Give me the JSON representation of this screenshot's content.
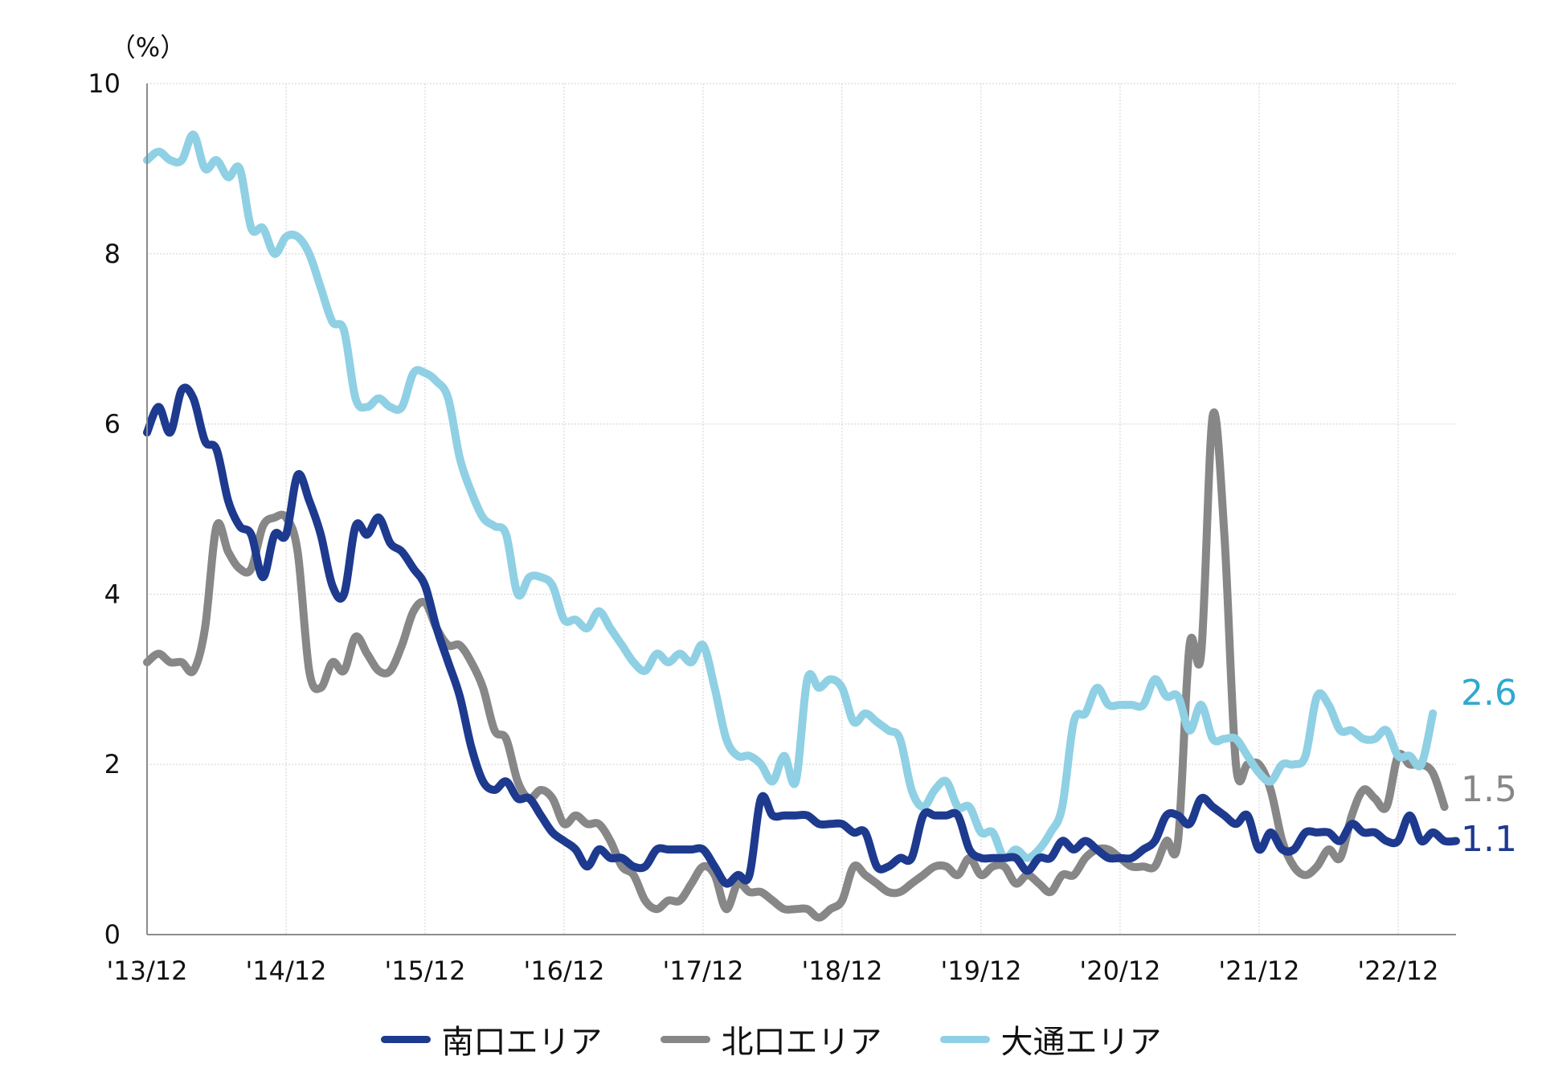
{
  "chart_data": {
    "type": "line",
    "unit_label": "（%）",
    "ylim": [
      0,
      10
    ],
    "yticks": [
      "0",
      "2",
      "4",
      "6",
      "8",
      "10"
    ],
    "x_range": [
      0,
      113
    ],
    "x_tick_labels": [
      "'13/12",
      "'14/12",
      "'15/12",
      "'16/12",
      "'17/12",
      "'18/12",
      "'19/12",
      "'20/12",
      "'21/12",
      "'22/12"
    ],
    "grid": "horizontal and vertical, light",
    "legend_position": "bottom-center",
    "series": [
      {
        "name": "南口エリア",
        "color": "#1d3a8f",
        "end_label": "1.1",
        "values": [
          5.9,
          6.2,
          5.9,
          6.4,
          6.3,
          5.8,
          5.7,
          5.1,
          4.8,
          4.7,
          4.2,
          4.7,
          4.7,
          5.4,
          5.1,
          4.7,
          4.1,
          4.0,
          4.8,
          4.7,
          4.9,
          4.6,
          4.5,
          4.3,
          4.1,
          3.6,
          3.2,
          2.8,
          2.2,
          1.8,
          1.7,
          1.8,
          1.6,
          1.6,
          1.4,
          1.2,
          1.1,
          1.0,
          0.8,
          1.0,
          0.9,
          0.9,
          0.8,
          0.8,
          1.0,
          1.0,
          1.0,
          1.0,
          1.0,
          0.8,
          0.6,
          0.7,
          0.7,
          1.6,
          1.4,
          1.4,
          1.4,
          1.4,
          1.3,
          1.3,
          1.3,
          1.2,
          1.2,
          0.8,
          0.8,
          0.9,
          0.9,
          1.4,
          1.4,
          1.4,
          1.4,
          1.0,
          0.9,
          0.9,
          0.9,
          0.9,
          0.75,
          0.9,
          0.9,
          1.1,
          1.0,
          1.1,
          1.0,
          0.9,
          0.9,
          0.9,
          1.0,
          1.1,
          1.4,
          1.4,
          1.3,
          1.6,
          1.5,
          1.4,
          1.3,
          1.4,
          1.0,
          1.2,
          1.0,
          1.0,
          1.2,
          1.2,
          1.2,
          1.1,
          1.3,
          1.2,
          1.2,
          1.1,
          1.1,
          1.4,
          1.1,
          1.2,
          1.1,
          1.1
        ]
      },
      {
        "name": "北口エリア",
        "color": "#878787",
        "end_label": "1.5",
        "values": [
          3.2,
          3.3,
          3.2,
          3.2,
          3.1,
          3.6,
          4.8,
          4.5,
          4.3,
          4.3,
          4.8,
          4.9,
          4.9,
          4.5,
          3.1,
          2.9,
          3.2,
          3.1,
          3.5,
          3.3,
          3.1,
          3.1,
          3.4,
          3.8,
          3.9,
          3.6,
          3.4,
          3.4,
          3.2,
          2.9,
          2.4,
          2.3,
          1.8,
          1.6,
          1.7,
          1.6,
          1.3,
          1.4,
          1.3,
          1.3,
          1.1,
          0.8,
          0.7,
          0.4,
          0.3,
          0.4,
          0.4,
          0.6,
          0.8,
          0.7,
          0.3,
          0.6,
          0.5,
          0.5,
          0.4,
          0.3,
          0.3,
          0.3,
          0.2,
          0.3,
          0.4,
          0.8,
          0.7,
          0.6,
          0.5,
          0.5,
          0.6,
          0.7,
          0.8,
          0.8,
          0.7,
          0.9,
          0.7,
          0.8,
          0.8,
          0.6,
          0.7,
          0.6,
          0.5,
          0.7,
          0.7,
          0.9,
          1.0,
          1.0,
          0.9,
          0.8,
          0.8,
          0.8,
          1.1,
          1.1,
          3.4,
          3.3,
          6.1,
          4.7,
          2.0,
          2.0,
          2.0,
          1.7,
          1.1,
          0.8,
          0.7,
          0.8,
          1.0,
          0.9,
          1.4,
          1.7,
          1.6,
          1.5,
          2.1,
          2.0,
          2.0,
          1.9,
          1.5
        ]
      },
      {
        "name": "大通エリア",
        "color": "#8fd0e4",
        "end_label": "2.6",
        "values": [
          9.1,
          9.2,
          9.1,
          9.1,
          9.4,
          9.0,
          9.1,
          8.9,
          9.0,
          8.3,
          8.3,
          8.0,
          8.2,
          8.2,
          8.0,
          7.6,
          7.2,
          7.1,
          6.3,
          6.2,
          6.3,
          6.2,
          6.2,
          6.6,
          6.6,
          6.5,
          6.3,
          5.6,
          5.2,
          4.9,
          4.8,
          4.7,
          4.0,
          4.2,
          4.2,
          4.1,
          3.7,
          3.7,
          3.6,
          3.8,
          3.6,
          3.4,
          3.2,
          3.1,
          3.3,
          3.2,
          3.3,
          3.2,
          3.4,
          2.9,
          2.3,
          2.1,
          2.1,
          2.0,
          1.8,
          2.1,
          1.8,
          3.0,
          2.9,
          3.0,
          2.9,
          2.5,
          2.6,
          2.5,
          2.4,
          2.3,
          1.7,
          1.5,
          1.7,
          1.8,
          1.5,
          1.5,
          1.2,
          1.2,
          0.9,
          1.0,
          0.9,
          1.0,
          1.2,
          1.5,
          2.5,
          2.6,
          2.9,
          2.7,
          2.7,
          2.7,
          2.7,
          3.0,
          2.8,
          2.8,
          2.4,
          2.7,
          2.3,
          2.3,
          2.3,
          2.1,
          1.9,
          1.8,
          2.0,
          2.0,
          2.1,
          2.8,
          2.7,
          2.4,
          2.4,
          2.3,
          2.3,
          2.4,
          2.1,
          2.1,
          2.0,
          2.6
        ]
      }
    ]
  }
}
